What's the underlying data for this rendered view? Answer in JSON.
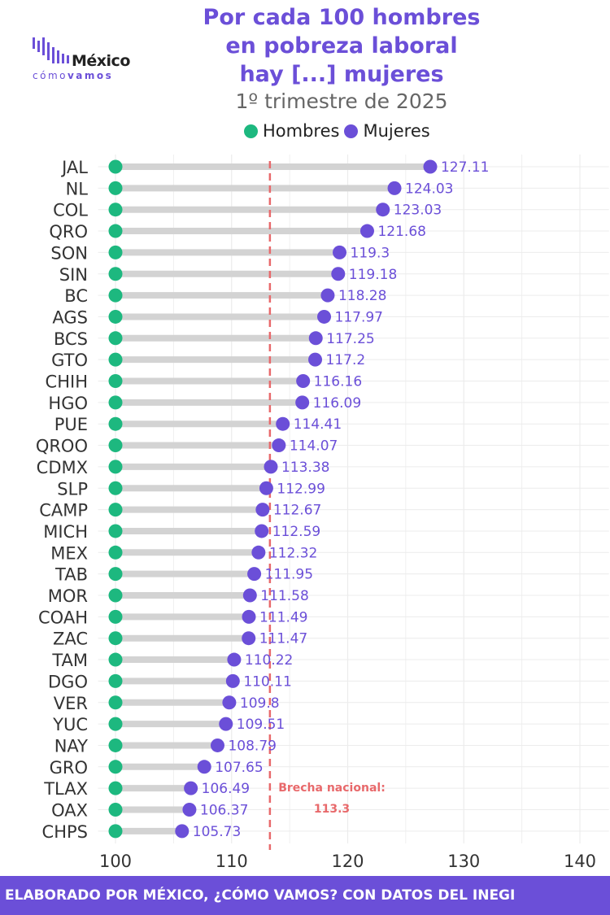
{
  "header": {
    "title_lines": [
      "Por cada 100 hombres",
      "en pobreza laboral",
      "hay [...] mujeres"
    ],
    "subtitle": "1º trimestre de 2025"
  },
  "logo": {
    "name": "México",
    "tag_light": "cómo",
    "tag_bold": "vamos"
  },
  "legend": {
    "men_label": "Hombres",
    "women_label": "Mujeres"
  },
  "colors": {
    "men": "#1db87f",
    "women": "#6b4fd8",
    "connector": "#d3d3d3",
    "reference": "#e8696b",
    "grid": "#ececec",
    "footer_bg": "#6b4fd8"
  },
  "footer": {
    "text": "ELABORADO POR MÉXICO, ¿CÓMO VAMOS? CON DATOS DEL INEGI"
  },
  "chart_data": {
    "type": "dumbbell",
    "categories": [
      "JAL",
      "NL",
      "COL",
      "QRO",
      "SON",
      "SIN",
      "BC",
      "AGS",
      "BCS",
      "GTO",
      "CHIH",
      "HGO",
      "PUE",
      "QROO",
      "CDMX",
      "SLP",
      "CAMP",
      "MICH",
      "MEX",
      "TAB",
      "MOR",
      "COAH",
      "ZAC",
      "TAM",
      "DGO",
      "VER",
      "YUC",
      "NAY",
      "GRO",
      "TLAX",
      "OAX",
      "CHPS"
    ],
    "series": [
      {
        "name": "Hombres",
        "values": [
          100,
          100,
          100,
          100,
          100,
          100,
          100,
          100,
          100,
          100,
          100,
          100,
          100,
          100,
          100,
          100,
          100,
          100,
          100,
          100,
          100,
          100,
          100,
          100,
          100,
          100,
          100,
          100,
          100,
          100,
          100,
          100
        ]
      },
      {
        "name": "Mujeres",
        "values": [
          127.11,
          124.03,
          123.03,
          121.68,
          119.3,
          119.18,
          118.28,
          117.97,
          117.25,
          117.2,
          116.16,
          116.09,
          114.41,
          114.07,
          113.38,
          112.99,
          112.67,
          112.59,
          112.32,
          111.95,
          111.58,
          111.49,
          111.47,
          110.22,
          110.11,
          109.8,
          109.51,
          108.79,
          107.65,
          106.49,
          106.37,
          105.73
        ]
      }
    ],
    "labels": [
      "127.11",
      "124.03",
      "123.03",
      "121.68",
      "119.3",
      "119.18",
      "118.28",
      "117.97",
      "117.25",
      "117.2",
      "116.16",
      "116.09",
      "114.41",
      "114.07",
      "113.38",
      "112.99",
      "112.67",
      "112.59",
      "112.32",
      "111.95",
      "111.58",
      "111.49",
      "111.47",
      "110.22",
      "110.11",
      "109.8",
      "109.51",
      "108.79",
      "107.65",
      "106.49",
      "106.37",
      "105.73"
    ],
    "reference": {
      "value": 113.3,
      "label_line1": "Brecha nacional:",
      "label_line2": "113.3"
    },
    "xlim": [
      98.5,
      142.5
    ],
    "xticks": [
      100,
      110,
      120,
      130,
      140
    ],
    "grid": true
  }
}
